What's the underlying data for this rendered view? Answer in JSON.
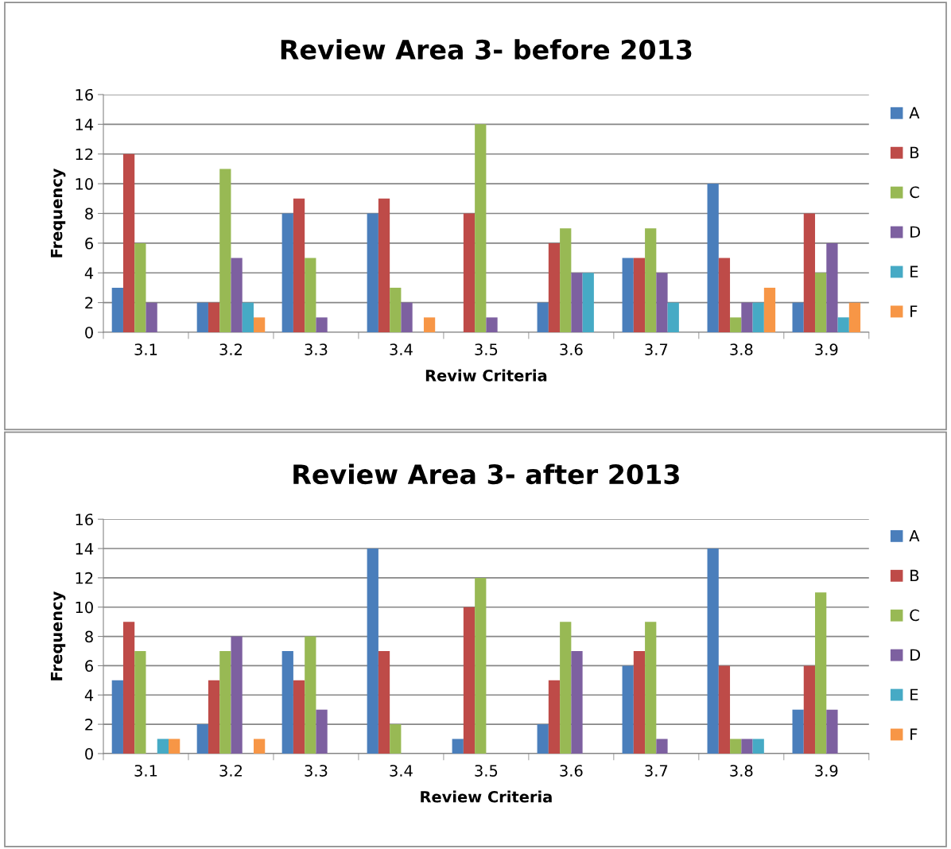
{
  "chart_data": [
    {
      "type": "bar",
      "title": "Review Area 3- before 2013",
      "xlabel": "Reviw Criteria",
      "ylabel": "Frequency",
      "categories": [
        "3.1",
        "3.2",
        "3.3",
        "3.4",
        "3.5",
        "3.6",
        "3.7",
        "3.8",
        "3.9"
      ],
      "series": [
        {
          "name": "A",
          "color": "#4a7ebb",
          "values": [
            3,
            2,
            8,
            8,
            0,
            2,
            5,
            10,
            2
          ]
        },
        {
          "name": "B",
          "color": "#be4b48",
          "values": [
            12,
            2,
            9,
            9,
            8,
            6,
            5,
            5,
            8
          ]
        },
        {
          "name": "C",
          "color": "#98b954",
          "values": [
            6,
            11,
            5,
            3,
            14,
            7,
            7,
            1,
            4
          ]
        },
        {
          "name": "D",
          "color": "#7d60a0",
          "values": [
            2,
            5,
            1,
            2,
            1,
            4,
            4,
            2,
            6
          ]
        },
        {
          "name": "E",
          "color": "#46aac5",
          "values": [
            0,
            2,
            0,
            0,
            0,
            4,
            2,
            2,
            1
          ]
        },
        {
          "name": "F",
          "color": "#f79646",
          "values": [
            0,
            1,
            0,
            1,
            0,
            0,
            0,
            3,
            2
          ]
        }
      ],
      "ylim": [
        0,
        16
      ],
      "yticks": [
        0,
        2,
        4,
        6,
        8,
        10,
        12,
        14,
        16
      ],
      "grid": "y",
      "legend": "right"
    },
    {
      "type": "bar",
      "title": "Review Area 3- after 2013",
      "xlabel": "Review Criteria",
      "ylabel": "Frequency",
      "categories": [
        "3.1",
        "3.2",
        "3.3",
        "3.4",
        "3.5",
        "3.6",
        "3.7",
        "3.8",
        "3.9"
      ],
      "series": [
        {
          "name": "A",
          "color": "#4a7ebb",
          "values": [
            5,
            2,
            7,
            14,
            1,
            2,
            6,
            14,
            3
          ]
        },
        {
          "name": "B",
          "color": "#be4b48",
          "values": [
            9,
            5,
            5,
            7,
            10,
            5,
            7,
            6,
            6
          ]
        },
        {
          "name": "C",
          "color": "#98b954",
          "values": [
            7,
            7,
            8,
            2,
            12,
            9,
            9,
            1,
            11
          ]
        },
        {
          "name": "D",
          "color": "#7d60a0",
          "values": [
            0,
            8,
            3,
            0,
            0,
            7,
            1,
            1,
            3
          ]
        },
        {
          "name": "E",
          "color": "#46aac5",
          "values": [
            1,
            0,
            0,
            0,
            0,
            0,
            0,
            1,
            0
          ]
        },
        {
          "name": "F",
          "color": "#f79646",
          "values": [
            1,
            1,
            0,
            0,
            0,
            0,
            0,
            0,
            0
          ]
        }
      ],
      "ylim": [
        0,
        16
      ],
      "yticks": [
        0,
        2,
        4,
        6,
        8,
        10,
        12,
        14,
        16
      ],
      "grid": "y",
      "legend": "right"
    }
  ]
}
